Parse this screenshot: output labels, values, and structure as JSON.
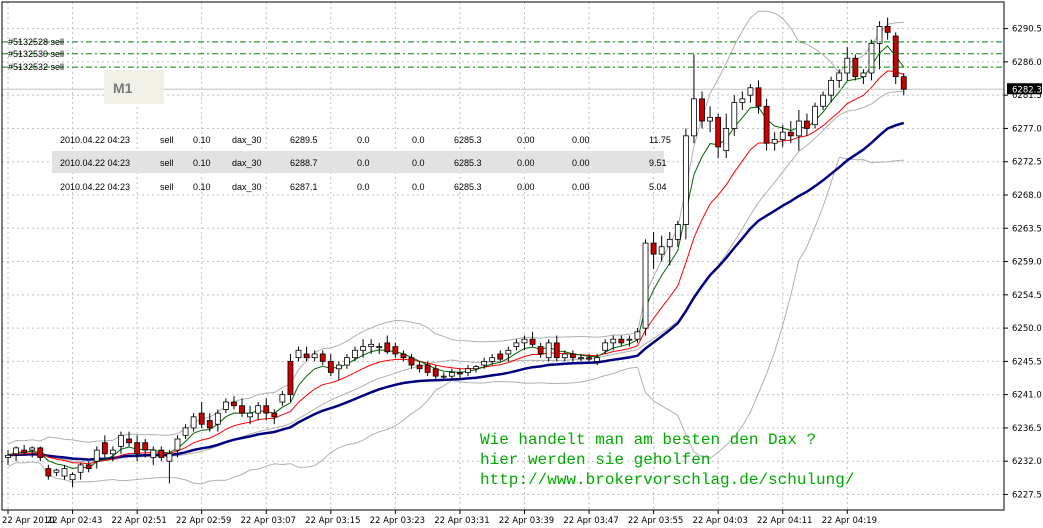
{
  "symbol_timeframe": "M1",
  "orders": [
    {
      "label": "#5132528 sell",
      "price": 6288.7
    },
    {
      "label": "#5132530 sell",
      "price": 6287.1
    },
    {
      "label": "#5132532 sell",
      "price": 6285.3
    }
  ],
  "order_label_visible": [
    "#5132530 sell",
    "#5132532 sell"
  ],
  "trades": [
    [
      "2010.04.22 04:23",
      "sell",
      "0.10",
      "dax_30",
      "6289.5",
      "0.0",
      "0.0",
      "6285.3",
      "0.00",
      "0.00",
      "11.75"
    ],
    [
      "2010.04.22 04:23",
      "sell",
      "0.10",
      "dax_30",
      "6288.7",
      "0.0",
      "0.0",
      "6285.3",
      "0.00",
      "0.00",
      "9.51"
    ],
    [
      "2010.04.22 04:23",
      "sell",
      "0.10",
      "dax_30",
      "6287.1",
      "0.0",
      "0.0",
      "6285.3",
      "0.00",
      "0.00",
      "5.04"
    ]
  ],
  "annotation_lines": [
    "Wie handelt man am besten  den Dax  ?",
    "hier werden sie geholfen",
    "http://www.brokervorschlag.de/schulung/"
  ],
  "current_price_label": "6282.3",
  "colors": {
    "bull_body": "#ffffff",
    "bear_body": "#cc0000",
    "candle_outline": "#000000",
    "ma_fast": "#006400",
    "ma_mid": "#ff0000",
    "ma_slow": "#000080",
    "bollinger": "#b0b0b0",
    "order_line": "#008000",
    "annotation": "#00aa00",
    "grid": "#c0c0c0"
  },
  "chart_data": {
    "type": "candlestick",
    "ylim": [
      6225.4,
      6294.1
    ],
    "yticks": [
      6227.5,
      6232.0,
      6236.5,
      6241.0,
      6245.5,
      6250.0,
      6254.5,
      6259.0,
      6263.5,
      6268.0,
      6272.5,
      6277.0,
      6281.5,
      6286.0,
      6290.5
    ],
    "ytick_labels": [
      "6227.5",
      "6232.0",
      "6236.5",
      "6241.0",
      "6245.5",
      "6250.0",
      "6254.5",
      "6259.0",
      "6263.5",
      "6268.0",
      "6272.5",
      "6277.0",
      "6281.5",
      "6286.0",
      "6290.5"
    ],
    "xtick_labels": [
      "22 Apr 2010",
      "22 Apr 02:43",
      "22 Apr 02:51",
      "22 Apr 02:59",
      "22 Apr 03:07",
      "22 Apr 03:15",
      "22 Apr 03:23",
      "22 Apr 03:31",
      "22 Apr 03:39",
      "22 Apr 03:47",
      "22 Apr 03:55",
      "22 Apr 04:03",
      "22 Apr 04:11",
      "22 Apr 04:19"
    ],
    "xtick_index": [
      0,
      8,
      16,
      24,
      32,
      40,
      48,
      56,
      64,
      72,
      80,
      88,
      96,
      104
    ],
    "grid": true,
    "candles": [
      [
        6232.5,
        6233.5,
        6231.5,
        6232.8
      ],
      [
        6233.0,
        6234.0,
        6232.0,
        6233.8
      ],
      [
        6233.5,
        6234.2,
        6232.8,
        6233.2
      ],
      [
        6233.5,
        6234.0,
        6232.5,
        6233.8
      ],
      [
        6233.8,
        6234.0,
        6232.0,
        6232.5
      ],
      [
        6231.0,
        6231.5,
        6229.5,
        6230.0
      ],
      [
        6230.5,
        6231.0,
        6230.0,
        6230.8
      ],
      [
        6230.0,
        6231.5,
        6229.5,
        6231.0
      ],
      [
        6229.5,
        6230.5,
        6228.5,
        6230.2
      ],
      [
        6230.5,
        6231.8,
        6229.5,
        6231.5
      ],
      [
        6231.5,
        6232.0,
        6230.5,
        6231.0
      ],
      [
        6232.0,
        6234.0,
        6231.0,
        6233.5
      ],
      [
        6234.5,
        6235.5,
        6232.5,
        6233.0
      ],
      [
        6233.0,
        6234.0,
        6232.0,
        6233.5
      ],
      [
        6234.0,
        6236.0,
        6233.0,
        6235.5
      ],
      [
        6235.0,
        6236.0,
        6234.0,
        6234.5
      ],
      [
        6234.5,
        6235.5,
        6232.0,
        6233.0
      ],
      [
        6234.5,
        6235.0,
        6232.5,
        6233.5
      ],
      [
        6232.5,
        6234.0,
        6231.5,
        6233.5
      ],
      [
        6233.5,
        6234.0,
        6232.0,
        6232.5
      ],
      [
        6232.0,
        6233.5,
        6229.0,
        6233.0
      ],
      [
        6233.5,
        6235.5,
        6232.5,
        6235.0
      ],
      [
        6235.5,
        6237.0,
        6235.0,
        6236.5
      ],
      [
        6236.5,
        6238.5,
        6236.0,
        6238.0
      ],
      [
        6238.5,
        6240.0,
        6236.5,
        6237.0
      ],
      [
        6237.5,
        6238.5,
        6236.0,
        6236.5
      ],
      [
        6237.0,
        6239.0,
        6236.0,
        6238.5
      ],
      [
        6239.0,
        6240.5,
        6238.5,
        6240.0
      ],
      [
        6240.0,
        6240.8,
        6239.0,
        6239.5
      ],
      [
        6239.5,
        6240.5,
        6238.0,
        6238.5
      ],
      [
        6238.0,
        6239.5,
        6237.0,
        6238.5
      ],
      [
        6238.5,
        6240.0,
        6237.5,
        6239.5
      ],
      [
        6239.5,
        6240.5,
        6237.5,
        6238.5
      ],
      [
        6238.5,
        6239.0,
        6237.0,
        6238.0
      ],
      [
        6240.0,
        6241.5,
        6239.5,
        6241.0
      ],
      [
        6245.5,
        6246.5,
        6240.0,
        6241.0
      ],
      [
        6246.0,
        6247.5,
        6245.5,
        6247.0
      ],
      [
        6246.5,
        6247.5,
        6245.5,
        6246.0
      ],
      [
        6246.0,
        6247.0,
        6245.5,
        6246.5
      ],
      [
        6246.5,
        6247.0,
        6245.0,
        6245.5
      ],
      [
        6245.5,
        6246.5,
        6243.5,
        6244.0
      ],
      [
        6244.5,
        6245.5,
        6243.0,
        6245.0
      ],
      [
        6245.0,
        6246.5,
        6244.5,
        6246.0
      ],
      [
        6246.0,
        6247.5,
        6245.5,
        6247.0
      ],
      [
        6247.0,
        6248.5,
        6246.0,
        6247.5
      ],
      [
        6247.5,
        6248.5,
        6246.5,
        6247.8
      ],
      [
        6247.5,
        6248.0,
        6246.5,
        6247.5
      ],
      [
        6248.0,
        6249.0,
        6246.5,
        6246.8
      ],
      [
        6247.5,
        6248.0,
        6246.0,
        6246.5
      ],
      [
        6246.5,
        6247.0,
        6245.5,
        6246.0
      ],
      [
        6246.0,
        6246.5,
        6244.5,
        6245.0
      ],
      [
        6245.0,
        6245.5,
        6244.0,
        6244.5
      ],
      [
        6245.0,
        6245.5,
        6243.5,
        6244.0
      ],
      [
        6244.5,
        6245.0,
        6243.0,
        6243.5
      ],
      [
        6243.5,
        6244.0,
        6243.0,
        6243.5
      ],
      [
        6243.5,
        6244.5,
        6243.0,
        6244.0
      ],
      [
        6244.0,
        6244.5,
        6243.0,
        6243.8
      ],
      [
        6244.0,
        6245.0,
        6243.5,
        6244.5
      ],
      [
        6244.5,
        6245.0,
        6244.0,
        6244.8
      ],
      [
        6245.0,
        6246.0,
        6244.5,
        6245.5
      ],
      [
        6245.5,
        6246.5,
        6245.0,
        6246.0
      ],
      [
        6246.5,
        6247.0,
        6245.5,
        6245.8
      ],
      [
        6246.5,
        6247.5,
        6245.5,
        6247.0
      ],
      [
        6247.5,
        6248.5,
        6247.0,
        6248.0
      ],
      [
        6248.0,
        6249.0,
        6247.0,
        6248.5
      ],
      [
        6248.5,
        6249.5,
        6247.5,
        6247.8
      ],
      [
        6247.5,
        6248.0,
        6246.0,
        6246.5
      ],
      [
        6246.0,
        6248.5,
        6245.5,
        6248.0
      ],
      [
        6248.0,
        6249.0,
        6245.5,
        6246.0
      ],
      [
        6246.0,
        6247.0,
        6245.5,
        6246.5
      ],
      [
        6246.5,
        6247.0,
        6245.5,
        6246.0
      ],
      [
        6246.0,
        6246.5,
        6245.5,
        6246.0
      ],
      [
        6246.0,
        6246.5,
        6245.5,
        6245.8
      ],
      [
        6245.5,
        6246.5,
        6245.0,
        6246.0
      ],
      [
        6247.0,
        6248.5,
        6246.5,
        6248.0
      ],
      [
        6248.0,
        6249.0,
        6247.0,
        6248.5
      ],
      [
        6248.5,
        6249.0,
        6247.5,
        6248.0
      ],
      [
        6248.5,
        6249.0,
        6247.5,
        6248.5
      ],
      [
        6248.5,
        6250.0,
        6248.0,
        6249.5
      ],
      [
        6250.0,
        6262.0,
        6249.0,
        6261.5
      ],
      [
        6261.5,
        6263.0,
        6258.0,
        6260.0
      ],
      [
        6260.0,
        6262.5,
        6259.0,
        6261.0
      ],
      [
        6261.0,
        6263.0,
        6258.5,
        6262.0
      ],
      [
        6262.0,
        6264.5,
        6261.0,
        6264.0
      ],
      [
        6264.0,
        6277.0,
        6262.0,
        6276.0
      ],
      [
        6276.0,
        6287.0,
        6275.0,
        6281.0
      ],
      [
        6281.0,
        6282.0,
        6277.0,
        6278.0
      ],
      [
        6278.0,
        6280.0,
        6276.5,
        6278.5
      ],
      [
        6278.5,
        6279.0,
        6273.0,
        6274.5
      ],
      [
        6274.0,
        6279.0,
        6273.0,
        6277.0
      ],
      [
        6277.0,
        6281.5,
        6276.0,
        6280.5
      ],
      [
        6280.5,
        6282.0,
        6279.5,
        6281.0
      ],
      [
        6281.5,
        6283.0,
        6280.5,
        6282.5
      ],
      [
        6282.5,
        6283.5,
        6279.0,
        6280.0
      ],
      [
        6280.0,
        6281.0,
        6274.0,
        6275.0
      ],
      [
        6275.0,
        6276.5,
        6274.0,
        6275.5
      ],
      [
        6275.5,
        6277.5,
        6274.5,
        6276.5
      ],
      [
        6276.5,
        6278.0,
        6275.0,
        6276.0
      ],
      [
        6276.0,
        6279.5,
        6274.0,
        6278.0
      ],
      [
        6278.0,
        6279.0,
        6276.0,
        6277.0
      ],
      [
        6277.5,
        6280.5,
        6277.0,
        6280.0
      ],
      [
        6280.0,
        6282.0,
        6279.5,
        6281.5
      ],
      [
        6281.5,
        6284.0,
        6280.5,
        6283.5
      ],
      [
        6283.5,
        6285.0,
        6282.5,
        6284.5
      ],
      [
        6284.5,
        6288.0,
        6283.5,
        6286.5
      ],
      [
        6286.5,
        6287.0,
        6283.5,
        6284.0
      ],
      [
        6284.0,
        6285.0,
        6283.0,
        6284.5
      ],
      [
        6284.5,
        6289.0,
        6283.5,
        6288.5
      ],
      [
        6288.5,
        6291.5,
        6285.0,
        6290.8
      ],
      [
        6290.8,
        6292.0,
        6289.0,
        6290.0
      ],
      [
        6289.5,
        6290.0,
        6283.0,
        6284.0
      ],
      [
        6284.0,
        6284.5,
        6281.5,
        6282.3
      ]
    ]
  }
}
